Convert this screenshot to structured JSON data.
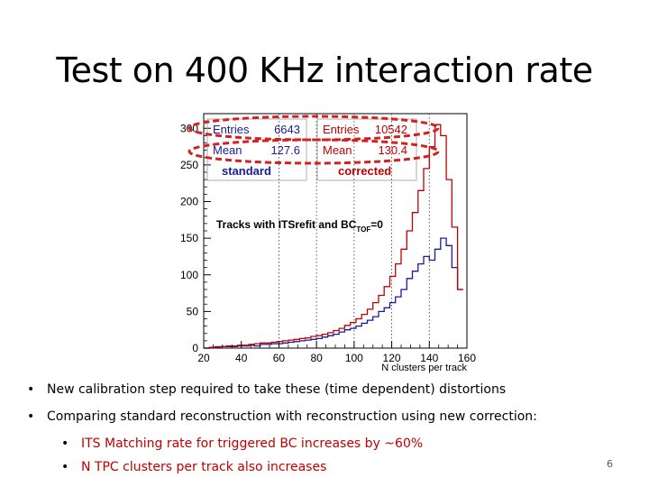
{
  "slide": {
    "title": "Test on 400 KHz interaction rate",
    "bullets": [
      "New calibration step required to take these  (time dependent) distortions",
      "Comparing standard reconstruction with reconstruction using new correction:"
    ],
    "sub_bullets": [
      "ITS Matching rate for triggered BC increases by ~60%",
      "N TPC clusters per track also increases"
    ],
    "page_number": "6"
  },
  "chart_data": {
    "type": "histogram",
    "xlabel": "N clusters per track",
    "ylabel": "",
    "annotation": "Tracks with ITSrefit and BC",
    "annotation_sub": "TOF",
    "annotation_tail": "=0",
    "xlim": [
      20,
      160
    ],
    "ylim": [
      0,
      320
    ],
    "x_ticks": [
      "20",
      "40",
      "60",
      "80",
      "100",
      "120",
      "140",
      "160"
    ],
    "y_ticks": [
      "0",
      "50",
      "100",
      "150",
      "200",
      "250",
      "300"
    ],
    "x_tick_values": [
      20,
      40,
      60,
      80,
      100,
      120,
      140,
      160
    ],
    "y_tick_values": [
      0,
      50,
      100,
      150,
      200,
      250,
      300
    ],
    "vlines": [
      60,
      80,
      100,
      120,
      140
    ],
    "bin_edges": [
      20,
      23,
      26,
      29,
      32,
      35,
      38,
      41,
      44,
      47,
      50,
      53,
      56,
      59,
      62,
      65,
      68,
      71,
      74,
      77,
      80,
      83,
      86,
      89,
      92,
      95,
      98,
      101,
      104,
      107,
      110,
      113,
      116,
      119,
      122,
      125,
      128,
      131,
      134,
      137,
      140,
      143,
      146,
      149,
      152,
      155,
      158
    ],
    "series": [
      {
        "name": "standard",
        "color": "#1a1a9c",
        "values": [
          0,
          1,
          1,
          2,
          2,
          2,
          3,
          3,
          4,
          3,
          5,
          5,
          6,
          6,
          7,
          8,
          9,
          10,
          11,
          12,
          13,
          15,
          17,
          19,
          22,
          25,
          27,
          30,
          34,
          38,
          43,
          50,
          55,
          62,
          70,
          80,
          95,
          105,
          115,
          125,
          120,
          135,
          150,
          140,
          110,
          80
        ]
      },
      {
        "name": "corrected",
        "color": "#c00000",
        "values": [
          0,
          1,
          2,
          2,
          3,
          3,
          4,
          4,
          5,
          6,
          7,
          7,
          8,
          9,
          10,
          11,
          12,
          13,
          14,
          16,
          17,
          19,
          21,
          24,
          27,
          31,
          35,
          40,
          46,
          53,
          62,
          72,
          84,
          98,
          115,
          135,
          160,
          185,
          215,
          245,
          275,
          305,
          290,
          230,
          165,
          80
        ]
      }
    ],
    "stats": [
      {
        "entries_label": "Entries",
        "entries": "6643",
        "mean_label": "Mean",
        "mean": "127.6",
        "label": "standard",
        "color": "#1a1a9c"
      },
      {
        "entries_label": "Entries",
        "entries": "10542",
        "mean_label": "Mean",
        "mean": "130.4",
        "label": "corrected",
        "color": "#c00000"
      }
    ],
    "highlight_color": "#d42020"
  }
}
